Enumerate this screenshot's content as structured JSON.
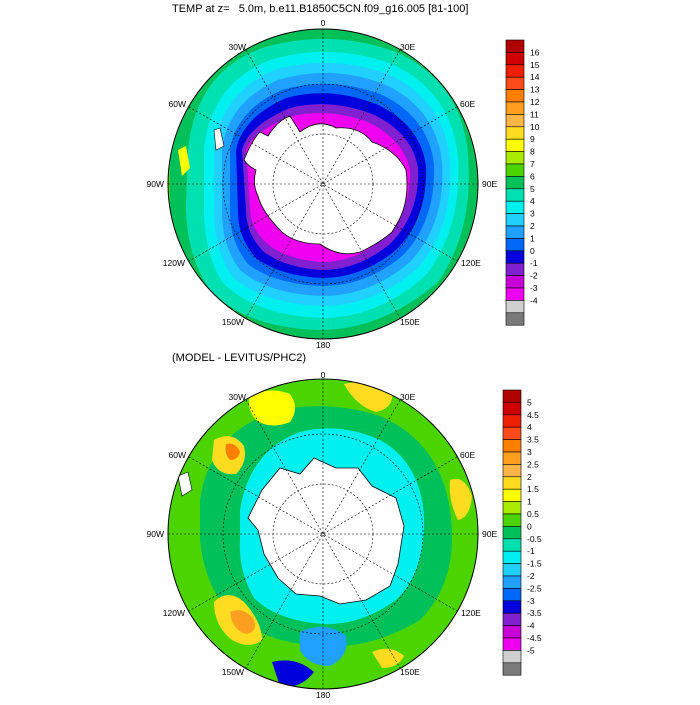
{
  "panels": [
    {
      "id": "top",
      "title": "TEMP at z=   5.0m, b.e11.B1850C5CN.f09_g16.005 [81-100]",
      "longitude_labels": [
        "0",
        "30E",
        "60E",
        "90E",
        "120E",
        "150E",
        "180",
        "150W",
        "120W",
        "90W",
        "60W",
        "30W"
      ],
      "colorbar": {
        "labels": [
          "16",
          "15",
          "14",
          "13",
          "12",
          "11",
          "10",
          "9",
          "8",
          "7",
          "6",
          "5",
          "4",
          "3",
          "2",
          "1",
          "0",
          "-1",
          "-2",
          "-3",
          "-4"
        ],
        "colors": [
          "#b00000",
          "#d00000",
          "#ee2000",
          "#ff4a1a",
          "#ff7f00",
          "#ff9f20",
          "#ffb545",
          "#ffdc20",
          "#ffff00",
          "#a8ea00",
          "#4cd400",
          "#00c05a",
          "#00e0b0",
          "#00f0f0",
          "#20d0ff",
          "#20a0ff",
          "#0068f8",
          "#0000dd",
          "#8020d0",
          "#c800d8",
          "#f000f0",
          "#d0d0d0",
          "#7a7a7a"
        ]
      }
    },
    {
      "id": "bottom",
      "title": "(MODEL - LEVITUS/PHC2)",
      "longitude_labels": [
        "0",
        "30E",
        "60E",
        "90E",
        "120E",
        "150E",
        "180",
        "150W",
        "120W",
        "90W",
        "60W",
        "30W"
      ],
      "colorbar": {
        "labels": [
          "5",
          "4.5",
          "4",
          "3.5",
          "3",
          "2.5",
          "2",
          "1.5",
          "1",
          "0.5",
          "0",
          "-0.5",
          "-1",
          "-1.5",
          "-2",
          "-2.5",
          "-3",
          "-3.5",
          "-4",
          "-4.5",
          "-5"
        ],
        "colors": [
          "#b00000",
          "#d00000",
          "#ee2000",
          "#ff4a1a",
          "#ff7f00",
          "#ff9f20",
          "#ffb545",
          "#ffdc20",
          "#ffff00",
          "#a8ea00",
          "#4cd400",
          "#00c05a",
          "#00e0b0",
          "#00f0f0",
          "#20d0ff",
          "#20a0ff",
          "#0068f8",
          "#0000dd",
          "#8020d0",
          "#c800d8",
          "#f000f0",
          "#d0d0d0",
          "#7a7a7a"
        ]
      }
    }
  ]
}
